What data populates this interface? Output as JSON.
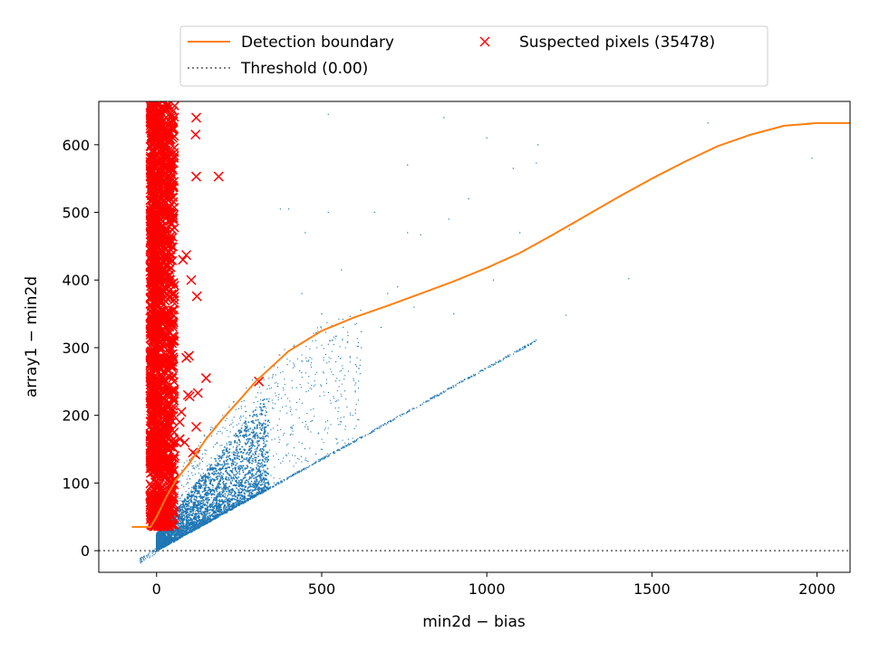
{
  "chart_data": {
    "type": "scatter",
    "xlabel": "min2d − bias",
    "ylabel": "array1 − min2d",
    "xlim": [
      -175,
      2100
    ],
    "ylim": [
      -32,
      664
    ],
    "xticks": [
      0,
      500,
      1000,
      1500,
      2000
    ],
    "yticks": [
      0,
      100,
      200,
      300,
      400,
      500,
      600
    ],
    "grid": false,
    "legend_placement": "top-center, above plot, 2 columns",
    "colors": {
      "boundary": "#ff7f0e",
      "threshold": "#808080",
      "suspected": "#ff0000",
      "pixels": "#1f77b4"
    },
    "legend": [
      {
        "label": "Detection boundary",
        "kind": "line",
        "color": "#ff7f0e"
      },
      {
        "label": "Threshold (0.00)",
        "kind": "dotted",
        "color": "#808080"
      },
      {
        "label": "Suspected pixels (35478)",
        "kind": "x-marker",
        "color": "#ff0000"
      }
    ],
    "threshold": {
      "name": "Threshold (0.00)",
      "y": 0
    },
    "detection_boundary": {
      "name": "Detection boundary",
      "x": [
        -75,
        -30,
        -18,
        0,
        30,
        60,
        100,
        150,
        200,
        250,
        300,
        400,
        500,
        600,
        700,
        800,
        900,
        1000,
        1100,
        1200,
        1300,
        1400,
        1500,
        1600,
        1700,
        1800,
        1900,
        2000,
        2100
      ],
      "y": [
        35,
        35,
        35,
        50,
        80,
        105,
        130,
        165,
        195,
        222,
        250,
        295,
        325,
        345,
        362,
        380,
        398,
        418,
        440,
        467,
        495,
        523,
        550,
        575,
        598,
        615,
        628,
        632,
        632
      ]
    },
    "suspected_pixels": {
      "name": "Suspected pixels (35478)",
      "count": 35478,
      "dense_band": {
        "x_range": [
          -20,
          55
        ],
        "y_range": [
          35,
          664
        ]
      },
      "outliers": [
        [
          120,
          640
        ],
        [
          118,
          615
        ],
        [
          120,
          553
        ],
        [
          188,
          553
        ],
        [
          90,
          437
        ],
        [
          80,
          430
        ],
        [
          105,
          400
        ],
        [
          122,
          376
        ],
        [
          90,
          285
        ],
        [
          98,
          288
        ],
        [
          150,
          255
        ],
        [
          310,
          250
        ],
        [
          125,
          233
        ],
        [
          100,
          228
        ],
        [
          70,
          190
        ],
        [
          75,
          205
        ],
        [
          60,
          160
        ],
        [
          120,
          183
        ],
        [
          70,
          165
        ],
        [
          110,
          145
        ],
        [
          118,
          142
        ],
        [
          85,
          160
        ],
        [
          55,
          140
        ],
        [
          40,
          120
        ],
        [
          95,
          230
        ]
      ]
    },
    "pixels": {
      "dense_wedge": {
        "x_range": [
          0,
          620
        ],
        "lower_slope": 0.27,
        "upper_bound_near_boundary": true
      },
      "ridge": {
        "x_range": [
          0,
          1150
        ],
        "slope": 0.27
      },
      "sparse_points": [
        [
          520,
          645
        ],
        [
          870,
          640
        ],
        [
          1000,
          610
        ],
        [
          1155,
          600
        ],
        [
          1670,
          632
        ],
        [
          1985,
          580
        ],
        [
          760,
          570
        ],
        [
          1080,
          565
        ],
        [
          1150,
          573
        ],
        [
          1250,
          475
        ],
        [
          1240,
          348
        ],
        [
          1430,
          402
        ],
        [
          1020,
          400
        ],
        [
          945,
          520
        ],
        [
          885,
          490
        ],
        [
          800,
          467
        ],
        [
          520,
          500
        ],
        [
          375,
          505
        ],
        [
          400,
          505
        ],
        [
          450,
          470
        ],
        [
          660,
          500
        ],
        [
          560,
          415
        ],
        [
          730,
          390
        ],
        [
          680,
          330
        ],
        [
          565,
          330
        ],
        [
          520,
          305
        ],
        [
          455,
          280
        ],
        [
          440,
          380
        ],
        [
          500,
          350
        ],
        [
          620,
          300
        ],
        [
          700,
          380
        ],
        [
          780,
          360
        ],
        [
          760,
          470
        ],
        [
          900,
          350
        ],
        [
          1100,
          470
        ]
      ]
    }
  }
}
